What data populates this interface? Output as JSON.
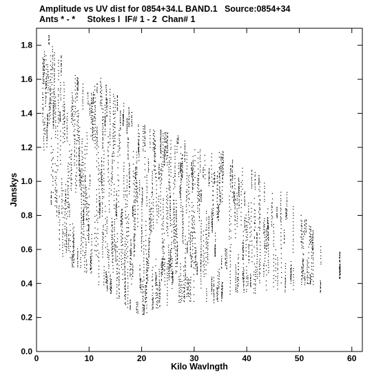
{
  "chart_data": {
    "type": "scatter",
    "title_line1": "Amplitude vs UV dist for 0854+34.L BAND.1   Source:0854+34",
    "title_line2": "Ants * - *     Stokes I  IF# 1 - 2  Chan# 1",
    "xlabel": "Kilo Wavlngth",
    "ylabel": "Janskys",
    "xlim": [
      0,
      62
    ],
    "ylim": [
      0,
      1.9
    ],
    "x_ticks": [
      0,
      10,
      20,
      30,
      40,
      50,
      60
    ],
    "y_ticks": [
      0.0,
      0.2,
      0.4,
      0.6,
      0.8,
      1.0,
      1.2,
      1.4,
      1.6,
      1.8
    ],
    "x_tick_labels": [
      "0",
      "10",
      "20",
      "30",
      "40",
      "50",
      "60"
    ],
    "y_tick_labels": [
      "0.0",
      "0.2",
      "0.4",
      "0.6",
      "0.8",
      "1.0",
      "1.2",
      "1.4",
      "1.6",
      "1.8"
    ],
    "marker_color": "#000000",
    "envelope": {
      "x": [
        1,
        2,
        3,
        4,
        5,
        6,
        8,
        10,
        12,
        14,
        16,
        18,
        20,
        22,
        25,
        28,
        30,
        32,
        35,
        38,
        40,
        42,
        45,
        48,
        50,
        53,
        55,
        58,
        61
      ],
      "y_max": [
        1.72,
        1.88,
        1.8,
        1.75,
        1.8,
        1.72,
        1.6,
        1.55,
        1.62,
        1.55,
        1.5,
        1.42,
        1.35,
        1.32,
        1.3,
        1.25,
        1.22,
        1.18,
        1.2,
        1.12,
        1.1,
        1.05,
        0.95,
        0.95,
        0.85,
        0.7,
        0.55,
        0.6,
        0.45
      ],
      "y_min": [
        1.25,
        1.0,
        0.8,
        0.62,
        0.55,
        0.5,
        0.5,
        0.45,
        0.38,
        0.35,
        0.3,
        0.24,
        0.22,
        0.25,
        0.28,
        0.3,
        0.3,
        0.28,
        0.3,
        0.35,
        0.35,
        0.35,
        0.38,
        0.35,
        0.4,
        0.4,
        0.3,
        0.45,
        0.3
      ]
    }
  }
}
